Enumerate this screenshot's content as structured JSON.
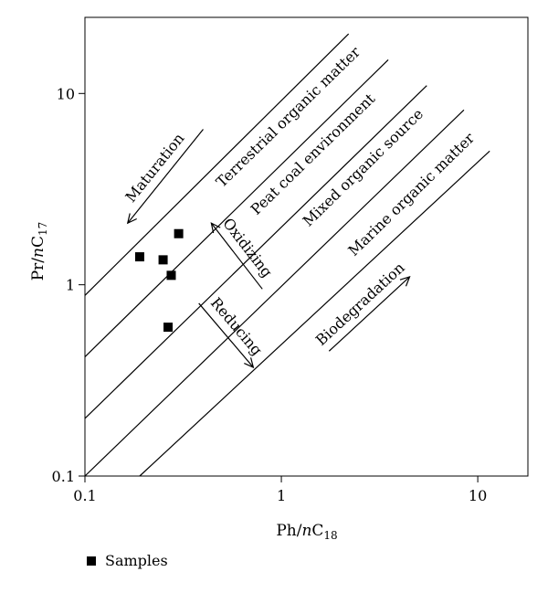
{
  "chart_data": {
    "type": "scatter",
    "x_scale": "log",
    "y_scale": "log",
    "xlim": [
      0.1,
      18
    ],
    "ylim": [
      0.1,
      25
    ],
    "x_ticks": [
      {
        "value": 0.1,
        "label": "0.1"
      },
      {
        "value": 1,
        "label": "1"
      },
      {
        "value": 10,
        "label": "10"
      }
    ],
    "y_ticks": [
      {
        "value": 0.1,
        "label": "0.1"
      },
      {
        "value": 1,
        "label": "1"
      },
      {
        "value": 10,
        "label": "10"
      }
    ],
    "xlabel": {
      "base": "Ph/",
      "italic": "n",
      "after": "C",
      "sub": "18"
    },
    "ylabel": {
      "base": "Pr/",
      "italic": "n",
      "after": "C",
      "sub": "17"
    },
    "series": [
      {
        "name": "Samples",
        "marker": "square",
        "color": "#000000",
        "points": [
          {
            "x": 0.19,
            "y": 1.4
          },
          {
            "x": 0.25,
            "y": 1.35
          },
          {
            "x": 0.275,
            "y": 1.12
          },
          {
            "x": 0.3,
            "y": 1.85
          },
          {
            "x": 0.265,
            "y": 0.6
          }
        ]
      }
    ],
    "boundary_lines": [
      {
        "x1": 0.1,
        "y1": 0.88,
        "x2": 2.2,
        "y2": 20.5
      },
      {
        "x1": 0.1,
        "y1": 0.42,
        "x2": 3.5,
        "y2": 15
      },
      {
        "x1": 0.1,
        "y1": 0.2,
        "x2": 5.5,
        "y2": 11
      },
      {
        "x1": 0.1,
        "y1": 0.1,
        "x2": 8.5,
        "y2": 8.2
      },
      {
        "x1": 0.19,
        "y1": 0.1,
        "x2": 11.5,
        "y2": 5.0
      }
    ],
    "region_labels": [
      {
        "text": "Terrestrial organic matter",
        "x": 0.5,
        "y": 3.2
      },
      {
        "text": "Peat coal environment",
        "x": 0.75,
        "y": 2.3
      },
      {
        "text": "Mixed organic source",
        "x": 1.38,
        "y": 2.0
      },
      {
        "text": "Marine organic matter",
        "x": 2.35,
        "y": 1.4
      }
    ],
    "arrows": [
      {
        "text": "Maturation",
        "from": [
          0.4,
          6.5
        ],
        "to": [
          0.165,
          2.1
        ]
      },
      {
        "text": "Oxidizing",
        "from": [
          0.8,
          0.95
        ],
        "to": [
          0.44,
          2.1
        ]
      },
      {
        "text": "Reducing",
        "from": [
          0.38,
          0.8
        ],
        "to": [
          0.72,
          0.37
        ]
      },
      {
        "text": "Biodegradation",
        "from": [
          1.75,
          0.45
        ],
        "to": [
          4.5,
          1.1
        ]
      }
    ],
    "legend": {
      "position": "bottom-left",
      "entries": [
        "Samples"
      ]
    }
  }
}
